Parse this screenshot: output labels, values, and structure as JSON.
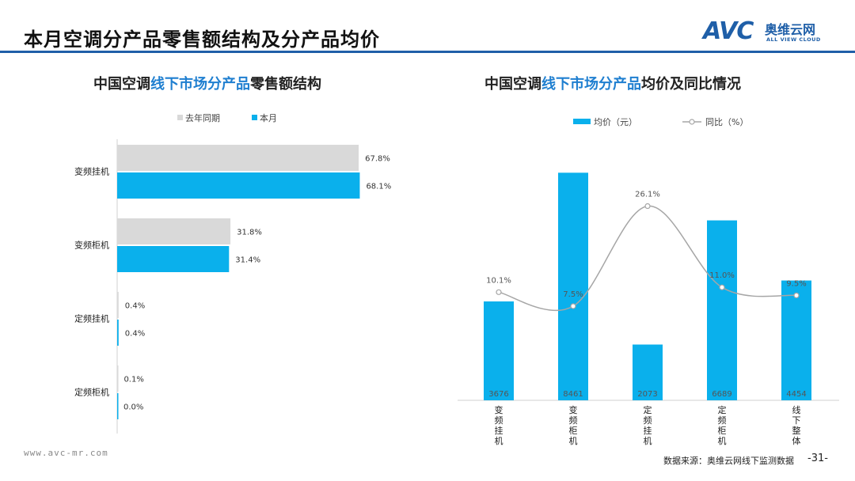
{
  "page": {
    "title": "本月空调分产品零售额结构及分产品均价",
    "logo_mark": "AVC",
    "logo_cn": "奥维云网",
    "logo_en": "ALL VIEW CLOUD",
    "footer_url": "www.avc-mr.com",
    "footer_source": "数据来源：奥维云网线下监测数据",
    "page_number": "-31-"
  },
  "colors": {
    "accent": "#1f5fa8",
    "bar_current": "#0ab0ec",
    "bar_last": "#d9d9d9",
    "line": "#a6a6a6"
  },
  "left_title": {
    "part1": "中国空调",
    "highlight": "线下市场分产品",
    "part2": "零售额结构"
  },
  "right_title": {
    "part1": "中国空调",
    "highlight": "线下市场分产品",
    "part2": "均价及同比情况"
  },
  "chart_data": [
    {
      "type": "bar",
      "orientation": "horizontal",
      "categories": [
        "变频挂机",
        "变频柜机",
        "定频挂机",
        "定频柜机"
      ],
      "series": [
        {
          "name": "去年同期",
          "values": [
            67.8,
            31.8,
            0.4,
            0.1
          ],
          "labels": [
            "67.8%",
            "31.8%",
            "0.4%",
            "0.1%"
          ]
        },
        {
          "name": "本月",
          "values": [
            68.1,
            31.4,
            0.4,
            0.0
          ],
          "labels": [
            "68.1%",
            "31.4%",
            "0.4%",
            "0.0%"
          ]
        }
      ],
      "xlim": [
        0,
        100
      ],
      "legend": "top-left"
    },
    {
      "type": "bar+line",
      "categories": [
        "变频挂机",
        "变频柜机",
        "定频挂机",
        "定频柜机",
        "线下整体"
      ],
      "series": [
        {
          "name": "均价（元）",
          "type": "bar",
          "values": [
            3676,
            8461,
            2073,
            6689,
            4454
          ],
          "labels": [
            "3676",
            "8461",
            "2073",
            "6689",
            "4454"
          ]
        },
        {
          "name": "同比（%）",
          "type": "line",
          "values": [
            10.1,
            7.5,
            26.1,
            11.0,
            9.5
          ],
          "labels": [
            "10.1%",
            "7.5%",
            "26.1%",
            "11.0%",
            "9.5%"
          ]
        }
      ],
      "bar_ylim": [
        0,
        9000
      ],
      "line_ylim": [
        -10,
        35
      ],
      "legend": "top"
    }
  ]
}
